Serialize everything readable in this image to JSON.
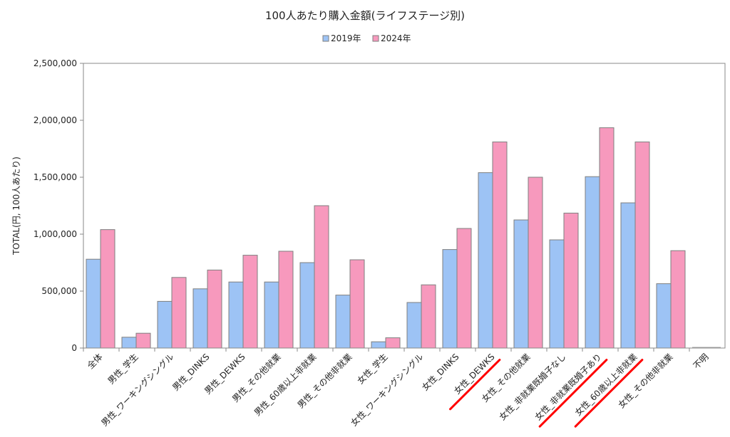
{
  "chart_data": {
    "type": "bar",
    "title": "100人あたり購入金額(ライフステージ別)",
    "ylabel": "TOTAL(円, 100人あたり)",
    "xlabel": "",
    "ylim": [
      0,
      2500000
    ],
    "yticks": [
      "0",
      "500,000",
      "1,000,000",
      "1,500,000",
      "2,000,000",
      "2,500,000"
    ],
    "ytick_values": [
      0,
      500000,
      1000000,
      1500000,
      2000000,
      2500000
    ],
    "grid": false,
    "legend_position": "top-center",
    "categories": [
      "全体",
      "男性_学生",
      "男性_ワーキングシングル",
      "男性_DINKS",
      "男性_DEWKS",
      "男性_その他就業",
      "男性_60歳以上非就業",
      "男性_その他非就業",
      "女性_学生",
      "女性_ワーキングシングル",
      "女性_DINKS",
      "女性_DEWKS",
      "女性_その他就業",
      "女性_非就業既婚子なし",
      "女性_非就業既婚子あり",
      "女性_60歳以上非就業",
      "女性_その他非就業",
      "不明"
    ],
    "series": [
      {
        "name": "2019年",
        "color": "#9dc3f5",
        "values": [
          780000,
          95000,
          410000,
          520000,
          580000,
          580000,
          750000,
          465000,
          55000,
          400000,
          865000,
          1540000,
          1125000,
          950000,
          1505000,
          1275000,
          565000,
          0
        ]
      },
      {
        "name": "2024年",
        "color": "#f799bd",
        "values": [
          1040000,
          130000,
          620000,
          685000,
          815000,
          850000,
          1250000,
          775000,
          90000,
          555000,
          1050000,
          1810000,
          1500000,
          1185000,
          1935000,
          1810000,
          855000,
          0
        ]
      }
    ],
    "underlined_categories": [
      "女性_DEWKS",
      "女性_非就業既婚子あり",
      "女性_60歳以上非就業"
    ],
    "annotation_color": "#ff0000"
  }
}
